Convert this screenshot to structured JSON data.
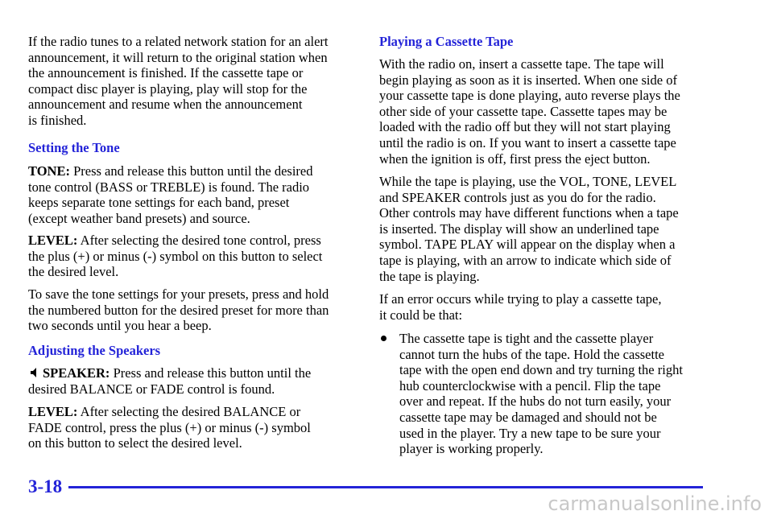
{
  "left": [
    {
      "lines": [
        "If the radio tunes to a related network station for an alert",
        "announcement, it will return to the original station when",
        "the announcement is finished. If the cassette tape or",
        "compact disc player is playing, play will stop for the",
        "announcement and resume when the announcement",
        "is finished."
      ]
    },
    {
      "heading": "Setting the Tone"
    },
    {
      "lead": "TONE:",
      "lines": [
        " Press and release this button until the desired",
        "tone control (BASS or TREBLE) is found. The radio",
        "keeps separate tone settings for each band, preset",
        "(except weather band presets) and source."
      ]
    },
    {
      "lead": "LEVEL:",
      "lines": [
        " After selecting the desired tone control, press",
        "the plus (+) or minus (-) symbol on this button to select",
        "the desired level."
      ]
    },
    {
      "lines": [
        "To save the tone settings for your presets, press and hold",
        "the numbered button for the desired preset for more than",
        "two seconds until you hear a beep."
      ]
    },
    {
      "heading": "Adjusting the Speakers"
    },
    {
      "lead": "SPEAKER:",
      "lines": [
        " Press and release this button until the",
        "desired BALANCE or FADE control is found."
      ]
    },
    {
      "lead": "LEVEL:",
      "lines": [
        " After selecting the desired BALANCE or",
        "FADE control, press the plus (+) or minus (-) symbol",
        "on this button to select the desired level."
      ]
    }
  ],
  "right": [
    {
      "heading": "Playing a Cassette Tape"
    },
    {
      "lines": [
        "With the radio on, insert a cassette tape. The tape will",
        "begin playing as soon as it is inserted. When one side of",
        "your cassette tape is done playing, auto reverse plays the",
        "other side of your cassette tape. Cassette tapes may be",
        "loaded with the radio off but they will not start playing",
        "until the radio is on. If you want to insert a cassette tape",
        "when the ignition is off, first press the eject button."
      ]
    },
    {
      "lines": [
        "While the tape is playing, use the VOL, TONE, LEVEL",
        "and SPEAKER controls just as you do for the radio.",
        "Other controls may have different functions when a tape",
        "is inserted. The display will show an underlined tape",
        "symbol. TAPE PLAY will appear on the display when a",
        "tape is playing, with an arrow to indicate which side of",
        "the tape is playing."
      ]
    },
    {
      "lines": [
        "If an error occurs while trying to play a cassette tape,",
        "it could be that:"
      ]
    },
    {
      "bullet": [
        "The cassette tape is tight and the cassette player",
        "cannot turn the hubs of the tape. Hold the cassette",
        "tape with the open end down and try turning the right",
        "hub counterclockwise with a pencil. Flip the tape",
        "over and repeat. If the hubs do not turn easily, your",
        "cassette tape may be damaged and should not be",
        "used in the player. Try a new tape to be sure your",
        "player is working properly."
      ]
    }
  ],
  "footer": {
    "page": "3-18",
    "watermark": "carmanualsonline.info"
  }
}
